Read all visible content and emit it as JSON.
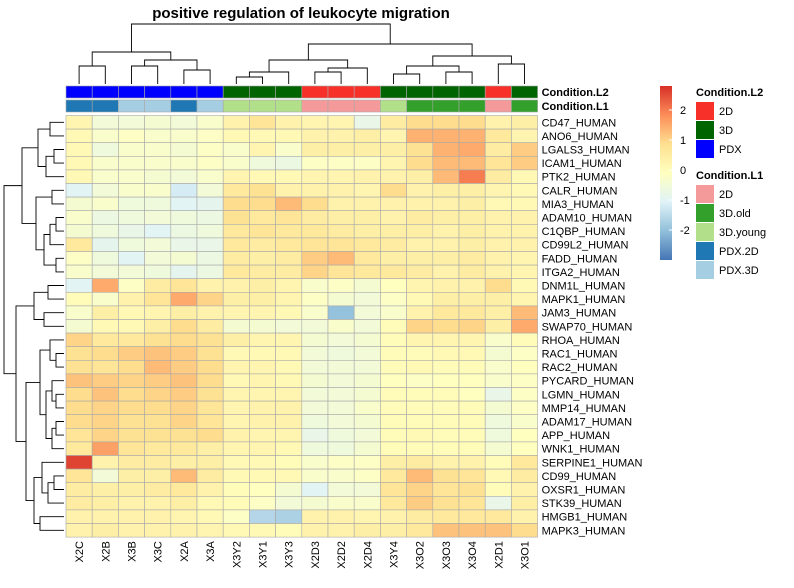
{
  "chart_data": {
    "type": "heatmap",
    "title": "positive regulation of leukocyte migration",
    "columns": [
      "X2C",
      "X2B",
      "X3B",
      "X3C",
      "X2A",
      "X3A",
      "X3Y2",
      "X3Y1",
      "X3Y3",
      "X2D3",
      "X2D2",
      "X2D4",
      "X3Y4",
      "X3O2",
      "X3O3",
      "X3O4",
      "X2D1",
      "X3O1"
    ],
    "rows": [
      "CD47_HUMAN",
      "ANO6_HUMAN",
      "LGALS3_HUMAN",
      "ICAM1_HUMAN",
      "PTK2_HUMAN",
      "CALR_HUMAN",
      "MIA3_HUMAN",
      "ADAM10_HUMAN",
      "C1QBP_HUMAN",
      "CD99L2_HUMAN",
      "FADD_HUMAN",
      "ITGA2_HUMAN",
      "DNM1L_HUMAN",
      "MAPK1_HUMAN",
      "JAM3_HUMAN",
      "SWAP70_HUMAN",
      "RHOA_HUMAN",
      "RAC1_HUMAN",
      "RAC2_HUMAN",
      "PYCARD_HUMAN",
      "LGMN_HUMAN",
      "MMP14_HUMAN",
      "ADAM17_HUMAN",
      "APP_HUMAN",
      "WNK1_HUMAN",
      "SERPINE1_HUMAN",
      "CD99_HUMAN",
      "OXSR1_HUMAN",
      "STK39_HUMAN",
      "HMGB1_HUMAN",
      "MAPK3_HUMAN"
    ],
    "values": [
      [
        0.2,
        -0.5,
        -0.5,
        -0.4,
        -0.5,
        -0.3,
        0.3,
        0.7,
        0.3,
        0.2,
        0.2,
        -0.8,
        0.5,
        0.9,
        0.9,
        0.9,
        0.3,
        0.4
      ],
      [
        0.1,
        -0.3,
        -0.2,
        -0.3,
        -0.3,
        -0.2,
        0.1,
        0.1,
        0.1,
        0.3,
        0.3,
        0.4,
        0.2,
        1.4,
        1.4,
        1.4,
        0.6,
        0.2
      ],
      [
        0.1,
        -0.6,
        -0.3,
        -0.3,
        -0.4,
        -0.2,
        -0.3,
        0.2,
        -0.3,
        0.4,
        0.4,
        0.4,
        0.4,
        0.8,
        1.4,
        1.5,
        0.5,
        1.1
      ],
      [
        0.1,
        -0.3,
        -0.3,
        -0.3,
        -0.3,
        -0.2,
        -0.3,
        -0.6,
        -0.7,
        -0.2,
        -0.2,
        -0.2,
        0.2,
        0.9,
        1.3,
        1.3,
        0.7,
        1.1
      ],
      [
        0.1,
        -0.3,
        -0.3,
        -0.4,
        -0.5,
        -0.3,
        0.2,
        0.1,
        0.1,
        0.2,
        0.2,
        0.3,
        0.3,
        0.4,
        1.3,
        2.0,
        0.5,
        0.1
      ],
      [
        -1.0,
        -0.5,
        -0.3,
        -0.3,
        -1.2,
        -0.5,
        0.6,
        0.8,
        0.3,
        0.3,
        0.3,
        0.2,
        0.9,
        0.3,
        0.4,
        0.4,
        0.2,
        0.1
      ],
      [
        -0.4,
        -0.3,
        -0.6,
        -0.6,
        -1.0,
        -0.9,
        0.9,
        0.9,
        1.3,
        0.9,
        0.3,
        0.3,
        0.3,
        0.3,
        0.3,
        0.4,
        0.1,
        0.1
      ],
      [
        -0.3,
        -0.7,
        -0.6,
        -0.5,
        -0.6,
        -0.7,
        0.8,
        0.6,
        0.7,
        0.5,
        0.4,
        0.4,
        0.3,
        0.5,
        0.4,
        0.4,
        0.3,
        0.3
      ],
      [
        -0.4,
        -0.6,
        -0.8,
        -1.0,
        -0.7,
        -0.6,
        0.6,
        0.7,
        0.6,
        0.6,
        0.5,
        0.4,
        0.4,
        0.4,
        0.3,
        0.4,
        0.3,
        0.3
      ],
      [
        0.6,
        -0.9,
        -0.6,
        -0.5,
        -0.8,
        -0.8,
        0.6,
        0.5,
        0.6,
        0.7,
        0.7,
        0.6,
        0.5,
        0.3,
        0.3,
        0.4,
        0.3,
        0.3
      ],
      [
        -0.2,
        -0.6,
        -1.0,
        -0.5,
        -0.4,
        -0.7,
        0.5,
        0.4,
        0.5,
        1.1,
        1.3,
        0.6,
        0.4,
        0.4,
        0.4,
        0.5,
        0.3,
        0.2
      ],
      [
        -0.3,
        -0.5,
        -0.5,
        -0.6,
        -0.9,
        -0.7,
        0.6,
        0.5,
        0.5,
        1.0,
        0.7,
        0.6,
        0.6,
        0.5,
        0.3,
        0.5,
        0.3,
        0.2
      ],
      [
        -1.0,
        1.5,
        -0.2,
        0.5,
        0.7,
        0.3,
        0.3,
        0.4,
        0.2,
        -0.3,
        -0.2,
        -0.4,
        -0.1,
        0.2,
        0.3,
        0.3,
        0.9,
        0.1
      ],
      [
        0.0,
        -0.3,
        0.3,
        0.7,
        1.5,
        1.0,
        0.4,
        0.4,
        0.2,
        -0.2,
        -0.4,
        -0.5,
        -0.2,
        0.1,
        0.4,
        0.4,
        0.4,
        0.2
      ],
      [
        -0.3,
        0.4,
        0.1,
        0.2,
        0.4,
        0.3,
        0.2,
        0.2,
        0.1,
        -0.3,
        -2.0,
        -0.5,
        -0.3,
        0.3,
        0.6,
        0.6,
        0.4,
        1.3
      ],
      [
        -0.4,
        0.1,
        0.1,
        0.4,
        0.9,
        0.5,
        -0.4,
        -0.4,
        -0.5,
        -0.5,
        -0.3,
        -0.5,
        0.0,
        1.0,
        0.9,
        1.0,
        0.4,
        1.5
      ],
      [
        1.0,
        0.6,
        0.6,
        0.8,
        0.9,
        0.8,
        0.4,
        0.2,
        0.2,
        -0.4,
        -0.5,
        -0.4,
        0.0,
        0.2,
        0.2,
        0.2,
        -0.3,
        0.0
      ],
      [
        0.8,
        0.9,
        1.1,
        1.2,
        1.1,
        0.8,
        0.1,
        0.1,
        0.1,
        -0.5,
        -0.6,
        -0.5,
        0.0,
        0.0,
        0.1,
        0.1,
        -0.4,
        -0.2
      ],
      [
        0.8,
        0.7,
        0.9,
        1.3,
        1.1,
        0.9,
        0.2,
        0.2,
        0.1,
        -0.5,
        -0.5,
        -0.5,
        0.0,
        0.1,
        0.0,
        0.0,
        -0.3,
        -0.1
      ],
      [
        1.2,
        1.1,
        1.0,
        1.1,
        1.2,
        0.9,
        0.1,
        0.2,
        0.1,
        -0.4,
        -0.5,
        -0.4,
        -0.1,
        -0.2,
        -0.1,
        -0.1,
        -0.3,
        -0.2
      ],
      [
        0.9,
        1.2,
        0.9,
        1.0,
        1.1,
        0.8,
        0.2,
        0.2,
        0.2,
        -0.5,
        -0.5,
        -0.4,
        0.0,
        0.0,
        0.0,
        -0.1,
        -0.8,
        -0.2
      ],
      [
        0.9,
        1.0,
        0.9,
        0.9,
        1.0,
        0.7,
        0.2,
        0.3,
        0.3,
        -0.5,
        -0.5,
        -0.3,
        0.0,
        0.0,
        0.0,
        0.0,
        -0.4,
        -0.2
      ],
      [
        0.9,
        1.0,
        0.8,
        0.8,
        1.0,
        0.7,
        0.2,
        0.3,
        0.3,
        -0.6,
        -0.5,
        -0.4,
        0.0,
        0.0,
        0.0,
        0.0,
        -0.6,
        -0.3
      ],
      [
        0.7,
        1.0,
        0.8,
        0.8,
        0.8,
        0.9,
        0.3,
        0.2,
        0.2,
        -0.8,
        -0.6,
        -0.5,
        0.0,
        0.1,
        0.0,
        0.0,
        -0.6,
        -0.1
      ],
      [
        0.6,
        1.6,
        0.7,
        0.6,
        0.6,
        0.4,
        0.2,
        0.2,
        0.1,
        -0.6,
        -0.6,
        -0.4,
        0.0,
        0.0,
        0.0,
        0.0,
        -0.4,
        -0.1
      ],
      [
        2.6,
        0.3,
        0.5,
        0.5,
        0.4,
        0.4,
        0.1,
        0.1,
        0.0,
        -0.3,
        -0.2,
        -0.2,
        0.4,
        0.5,
        0.3,
        0.3,
        0.0,
        0.6
      ],
      [
        0.7,
        -0.5,
        0.4,
        0.4,
        1.3,
        0.5,
        0.1,
        0.1,
        0.1,
        -0.3,
        -0.3,
        -0.2,
        0.6,
        1.3,
        0.8,
        0.7,
        0.1,
        0.5
      ],
      [
        0.5,
        0.4,
        0.4,
        0.5,
        0.6,
        0.3,
        0.0,
        -0.1,
        -0.4,
        -1.0,
        -0.5,
        -0.5,
        0.7,
        1.0,
        0.7,
        0.8,
        0.0,
        0.3
      ],
      [
        0.5,
        0.4,
        0.3,
        0.3,
        0.4,
        0.1,
        0.0,
        -0.2,
        -0.5,
        -0.4,
        -0.3,
        -0.3,
        0.6,
        1.1,
        0.8,
        0.7,
        -0.8,
        0.4
      ],
      [
        0.3,
        0.3,
        0.3,
        0.3,
        0.2,
        0.1,
        -0.2,
        -1.6,
        -1.7,
        0.3,
        0.3,
        0.2,
        0.3,
        0.5,
        0.6,
        0.6,
        0.6,
        0.3
      ],
      [
        0.3,
        0.4,
        0.3,
        0.3,
        0.3,
        0.2,
        0.1,
        0.1,
        0.0,
        0.3,
        0.3,
        0.4,
        0.4,
        0.6,
        1.2,
        1.2,
        1.2,
        0.9
      ]
    ],
    "annotations": [
      {
        "name": "Condition.L2",
        "values": [
          "PDX",
          "PDX",
          "PDX",
          "PDX",
          "PDX",
          "PDX",
          "3D",
          "3D",
          "3D",
          "2D",
          "2D",
          "2D",
          "3D",
          "3D",
          "3D",
          "3D",
          "2D",
          "3D"
        ]
      },
      {
        "name": "Condition.L1",
        "values": [
          "PDX.2D",
          "PDX.2D",
          "PDX.3D",
          "PDX.3D",
          "PDX.2D",
          "PDX.3D",
          "3D.young",
          "3D.young",
          "3D.young",
          "2D",
          "2D",
          "2D",
          "3D.young",
          "3D.old",
          "3D.old",
          "3D.old",
          "2D",
          "3D.old"
        ]
      }
    ],
    "legends": [
      {
        "title": "Condition.L2",
        "entries": [
          {
            "label": "2D",
            "color": "#F8302A"
          },
          {
            "label": "3D",
            "color": "#006400"
          },
          {
            "label": "PDX",
            "color": "#0000FF"
          }
        ]
      },
      {
        "title": "Condition.L1",
        "entries": [
          {
            "label": "2D",
            "color": "#F59A9A"
          },
          {
            "label": "3D.old",
            "color": "#33A02C"
          },
          {
            "label": "3D.young",
            "color": "#B2DF8A"
          },
          {
            "label": "PDX.2D",
            "color": "#1F78B4"
          },
          {
            "label": "PDX.3D",
            "color": "#A6CEE3"
          }
        ]
      }
    ],
    "colorbar": {
      "range": [
        -3,
        2.8
      ],
      "ticks": [
        2,
        1,
        0,
        -1,
        -2
      ],
      "tick_labels": [
        "2",
        "1",
        "0",
        "-1",
        "-2"
      ],
      "colors": [
        "#4575B4",
        "#91BFDB",
        "#E0F3F8",
        "#FFFFBF",
        "#FEE090",
        "#FC8D59",
        "#D73027"
      ]
    },
    "row_dendrogram_order": [
      0,
      1,
      2,
      3,
      4,
      5,
      6,
      7,
      8,
      9,
      10,
      11,
      12,
      13,
      14,
      15,
      16,
      17,
      18,
      19,
      20,
      21,
      22,
      23,
      24,
      25,
      26,
      27,
      28,
      29,
      30
    ],
    "col_dendrogram_order": [
      0,
      1,
      2,
      3,
      4,
      5,
      6,
      7,
      8,
      9,
      10,
      11,
      12,
      13,
      14,
      15,
      16,
      17
    ]
  }
}
